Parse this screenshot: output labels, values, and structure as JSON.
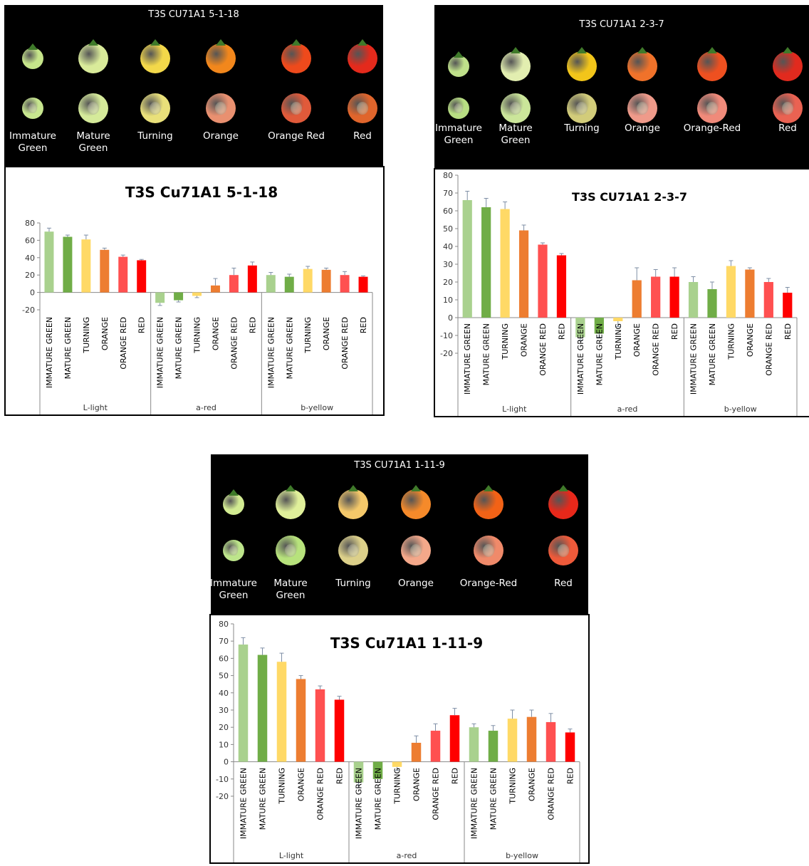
{
  "colors": {
    "IMMATURE GREEN": "#a9d18e",
    "MATURE GREEN": "#70ad47",
    "TURNING": "#ffd966",
    "ORANGE": "#ed7d31",
    "ORANGE RED": "#ff5050",
    "RED": "#ff0000"
  },
  "panels": [
    {
      "photo": {
        "title": "T3S CU71A1 5-1-18",
        "stages": [
          {
            "label": "Immature\nGreen",
            "top": "#c6e58a",
            "cut": "#c7e68f"
          },
          {
            "label": "Mature\nGreen",
            "top": "#d9eb9a",
            "cut": "#d5ea9a"
          },
          {
            "label": "Turning",
            "top": "#f3d84a",
            "cut": "#e9e07a"
          },
          {
            "label": "Orange",
            "top": "#f2871c",
            "cut": "#e99070"
          },
          {
            "label": "Orange Red",
            "top": "#ee4a1c",
            "cut": "#e05a3a"
          },
          {
            "label": "Red",
            "top": "#e42a1c",
            "cut": "#e0652c"
          }
        ]
      },
      "chart_data": {
        "type": "bar",
        "title": "T3S Cu71A1 5-1-18",
        "ylim": [
          -20,
          80
        ],
        "yticks": [
          -20,
          0,
          20,
          40,
          60,
          80
        ],
        "groups": [
          "L-light",
          "a-red",
          "b-yellow"
        ],
        "categories": [
          "IMMATURE GREEN",
          "MATURE GREEN",
          "TURNING",
          "ORANGE",
          "ORANGE RED",
          "RED"
        ],
        "series": [
          {
            "values": [
              70,
              64,
              61,
              49,
              41,
              37
            ],
            "errors": [
              4,
              2,
              5,
              2,
              2,
              1
            ]
          },
          {
            "values": [
              -12,
              -9,
              -4,
              8,
              20,
              31
            ],
            "errors": [
              3,
              2,
              2,
              8,
              8,
              4
            ]
          },
          {
            "values": [
              20,
              18,
              27,
              26,
              20,
              18
            ],
            "errors": [
              3,
              3,
              3,
              2,
              4,
              1
            ]
          }
        ],
        "grid": false,
        "legend": "none"
      }
    },
    {
      "photo": {
        "title": "T3S CU71A1 2-3-7",
        "stages": [
          {
            "label": "Immature\nGreen",
            "top": "#bfe08a",
            "cut": "#b8de83"
          },
          {
            "label": "Mature\nGreen",
            "top": "#e2eeb0",
            "cut": "#cbe69a"
          },
          {
            "label": "Turning",
            "top": "#f2c51a",
            "cut": "#d2cc7a"
          },
          {
            "label": "Orange",
            "top": "#f0722a",
            "cut": "#ef9a8a"
          },
          {
            "label": "Orange-Red",
            "top": "#ee5020",
            "cut": "#f08a7a"
          },
          {
            "label": "Red",
            "top": "#e12a1e",
            "cut": "#ea6252"
          }
        ]
      },
      "chart_data": {
        "type": "bar",
        "title": "T3S CU71A1 2-3-7",
        "ylim": [
          -20,
          80
        ],
        "yticks": [
          -20,
          -10,
          0,
          10,
          20,
          30,
          40,
          50,
          60,
          70,
          80
        ],
        "groups": [
          "L-light",
          "a-red",
          "b-yellow"
        ],
        "categories": [
          "IMMATURE GREEN",
          "MATURE GREEN",
          "TURNING",
          "ORANGE",
          "ORANGE RED",
          "RED"
        ],
        "series": [
          {
            "values": [
              66,
              62,
              61,
              49,
              41,
              35
            ],
            "errors": [
              5,
              5,
              4,
              3,
              1,
              1
            ]
          },
          {
            "values": [
              -11,
              -9,
              -2,
              21,
              23,
              23
            ],
            "errors": [
              2,
              2,
              3,
              7,
              4,
              5
            ]
          },
          {
            "values": [
              20,
              16,
              29,
              27,
              20,
              14
            ],
            "errors": [
              3,
              4,
              3,
              1,
              2,
              3
            ]
          }
        ],
        "grid": false,
        "legend": "none"
      }
    },
    {
      "photo": {
        "title": "T3S CU71A1 1-11-9",
        "stages": [
          {
            "label": "Immature\nGreen",
            "top": "#d2eb92",
            "cut": "#bde58b"
          },
          {
            "label": "Mature\nGreen",
            "top": "#e0f09a",
            "cut": "#b7e27c"
          },
          {
            "label": "Turning",
            "top": "#f4c86a",
            "cut": "#dcd08a"
          },
          {
            "label": "Orange",
            "top": "#f58a2a",
            "cut": "#f4a88a"
          },
          {
            "label": "Orange-Red",
            "top": "#f26216",
            "cut": "#f08a6a"
          },
          {
            "label": "Red",
            "top": "#e8281a",
            "cut": "#ee5a3a"
          }
        ]
      },
      "chart_data": {
        "type": "bar",
        "title": "T3S Cu71A1 1-11-9",
        "ylim": [
          -20,
          80
        ],
        "yticks": [
          -20,
          -10,
          0,
          10,
          20,
          30,
          40,
          50,
          60,
          70,
          80
        ],
        "groups": [
          "L-light",
          "a-red",
          "b-yellow"
        ],
        "categories": [
          "IMMATURE GREEN",
          "MATURE GREEN",
          "TURNING",
          "ORANGE",
          "ORANGE RED",
          "RED"
        ],
        "series": [
          {
            "values": [
              68,
              62,
              58,
              48,
              42,
              36
            ],
            "errors": [
              4,
              4,
              5,
              2,
              2,
              2
            ]
          },
          {
            "values": [
              -12,
              -10,
              -3,
              11,
              18,
              27
            ],
            "errors": [
              3,
              2,
              2,
              4,
              4,
              4
            ]
          },
          {
            "values": [
              20,
              18,
              25,
              26,
              23,
              17
            ],
            "errors": [
              2,
              3,
              5,
              4,
              5,
              2
            ]
          }
        ],
        "grid": false,
        "legend": "none"
      }
    }
  ]
}
